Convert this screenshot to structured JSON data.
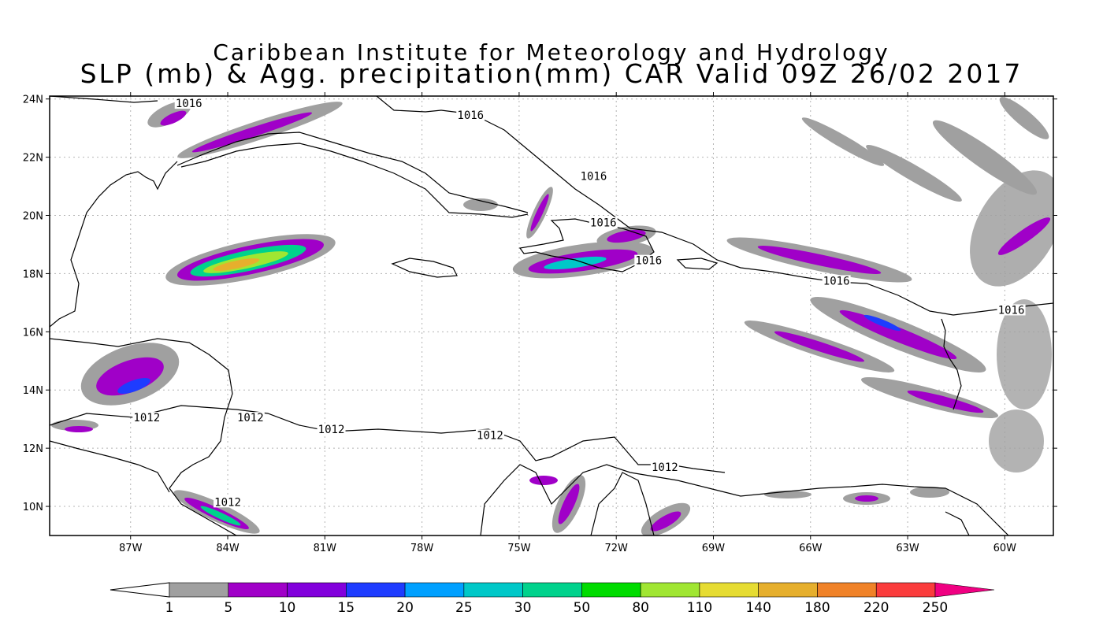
{
  "header": {
    "title_line1": "Caribbean Institute for Meteorology and Hydrology",
    "title_line2": "SLP (mb) & Agg. precipitation(mm) CAR Valid 09Z 26/02 2017"
  },
  "map": {
    "lon_range": [
      -89.5,
      -58.5
    ],
    "lat_range": [
      9,
      24.1
    ],
    "lon_ticks": [
      -87,
      -84,
      -81,
      -78,
      -75,
      -72,
      -69,
      -66,
      -63,
      -60
    ],
    "lon_tick_labels": [
      "87W",
      "84W",
      "81W",
      "78W",
      "75W",
      "72W",
      "69W",
      "66W",
      "63W",
      "60W"
    ],
    "lat_ticks": [
      10,
      12,
      14,
      16,
      18,
      20,
      22,
      24
    ],
    "lat_tick_labels": [
      "10N",
      "12N",
      "14N",
      "16N",
      "18N",
      "20N",
      "22N",
      "24N"
    ],
    "grid": true,
    "isobar_labels": [
      {
        "text": "1016",
        "lon": -85.2,
        "lat": 23.8
      },
      {
        "text": "1016",
        "lon": -76.5,
        "lat": 23.4
      },
      {
        "text": "1016",
        "lon": -72.7,
        "lat": 21.3
      },
      {
        "text": "1016",
        "lon": -72.4,
        "lat": 19.7
      },
      {
        "text": "1016",
        "lon": -71.0,
        "lat": 18.4
      },
      {
        "text": "1016",
        "lon": -65.2,
        "lat": 17.7
      },
      {
        "text": "1016",
        "lon": -59.8,
        "lat": 16.7
      },
      {
        "text": "1012",
        "lon": -86.5,
        "lat": 13.0
      },
      {
        "text": "1012",
        "lon": -83.3,
        "lat": 13.0
      },
      {
        "text": "1012",
        "lon": -80.8,
        "lat": 12.6
      },
      {
        "text": "1012",
        "lon": -75.9,
        "lat": 12.4
      },
      {
        "text": "1012",
        "lon": -70.5,
        "lat": 11.3
      },
      {
        "text": "1012",
        "lon": -84.0,
        "lat": 10.1
      }
    ]
  },
  "colorbar": {
    "labels": [
      "1",
      "5",
      "10",
      "15",
      "20",
      "25",
      "30",
      "50",
      "80",
      "110",
      "140",
      "180",
      "220",
      "250"
    ],
    "colors": [
      "#a0a0a0",
      "#a000c8",
      "#8200dc",
      "#1e3cff",
      "#00a0ff",
      "#00c8c8",
      "#00d28c",
      "#00dc00",
      "#a0e632",
      "#e6dc32",
      "#e6af2d",
      "#f08228",
      "#fa3c3c",
      "#f00082"
    ],
    "low_end_color": "#ffffff"
  }
}
